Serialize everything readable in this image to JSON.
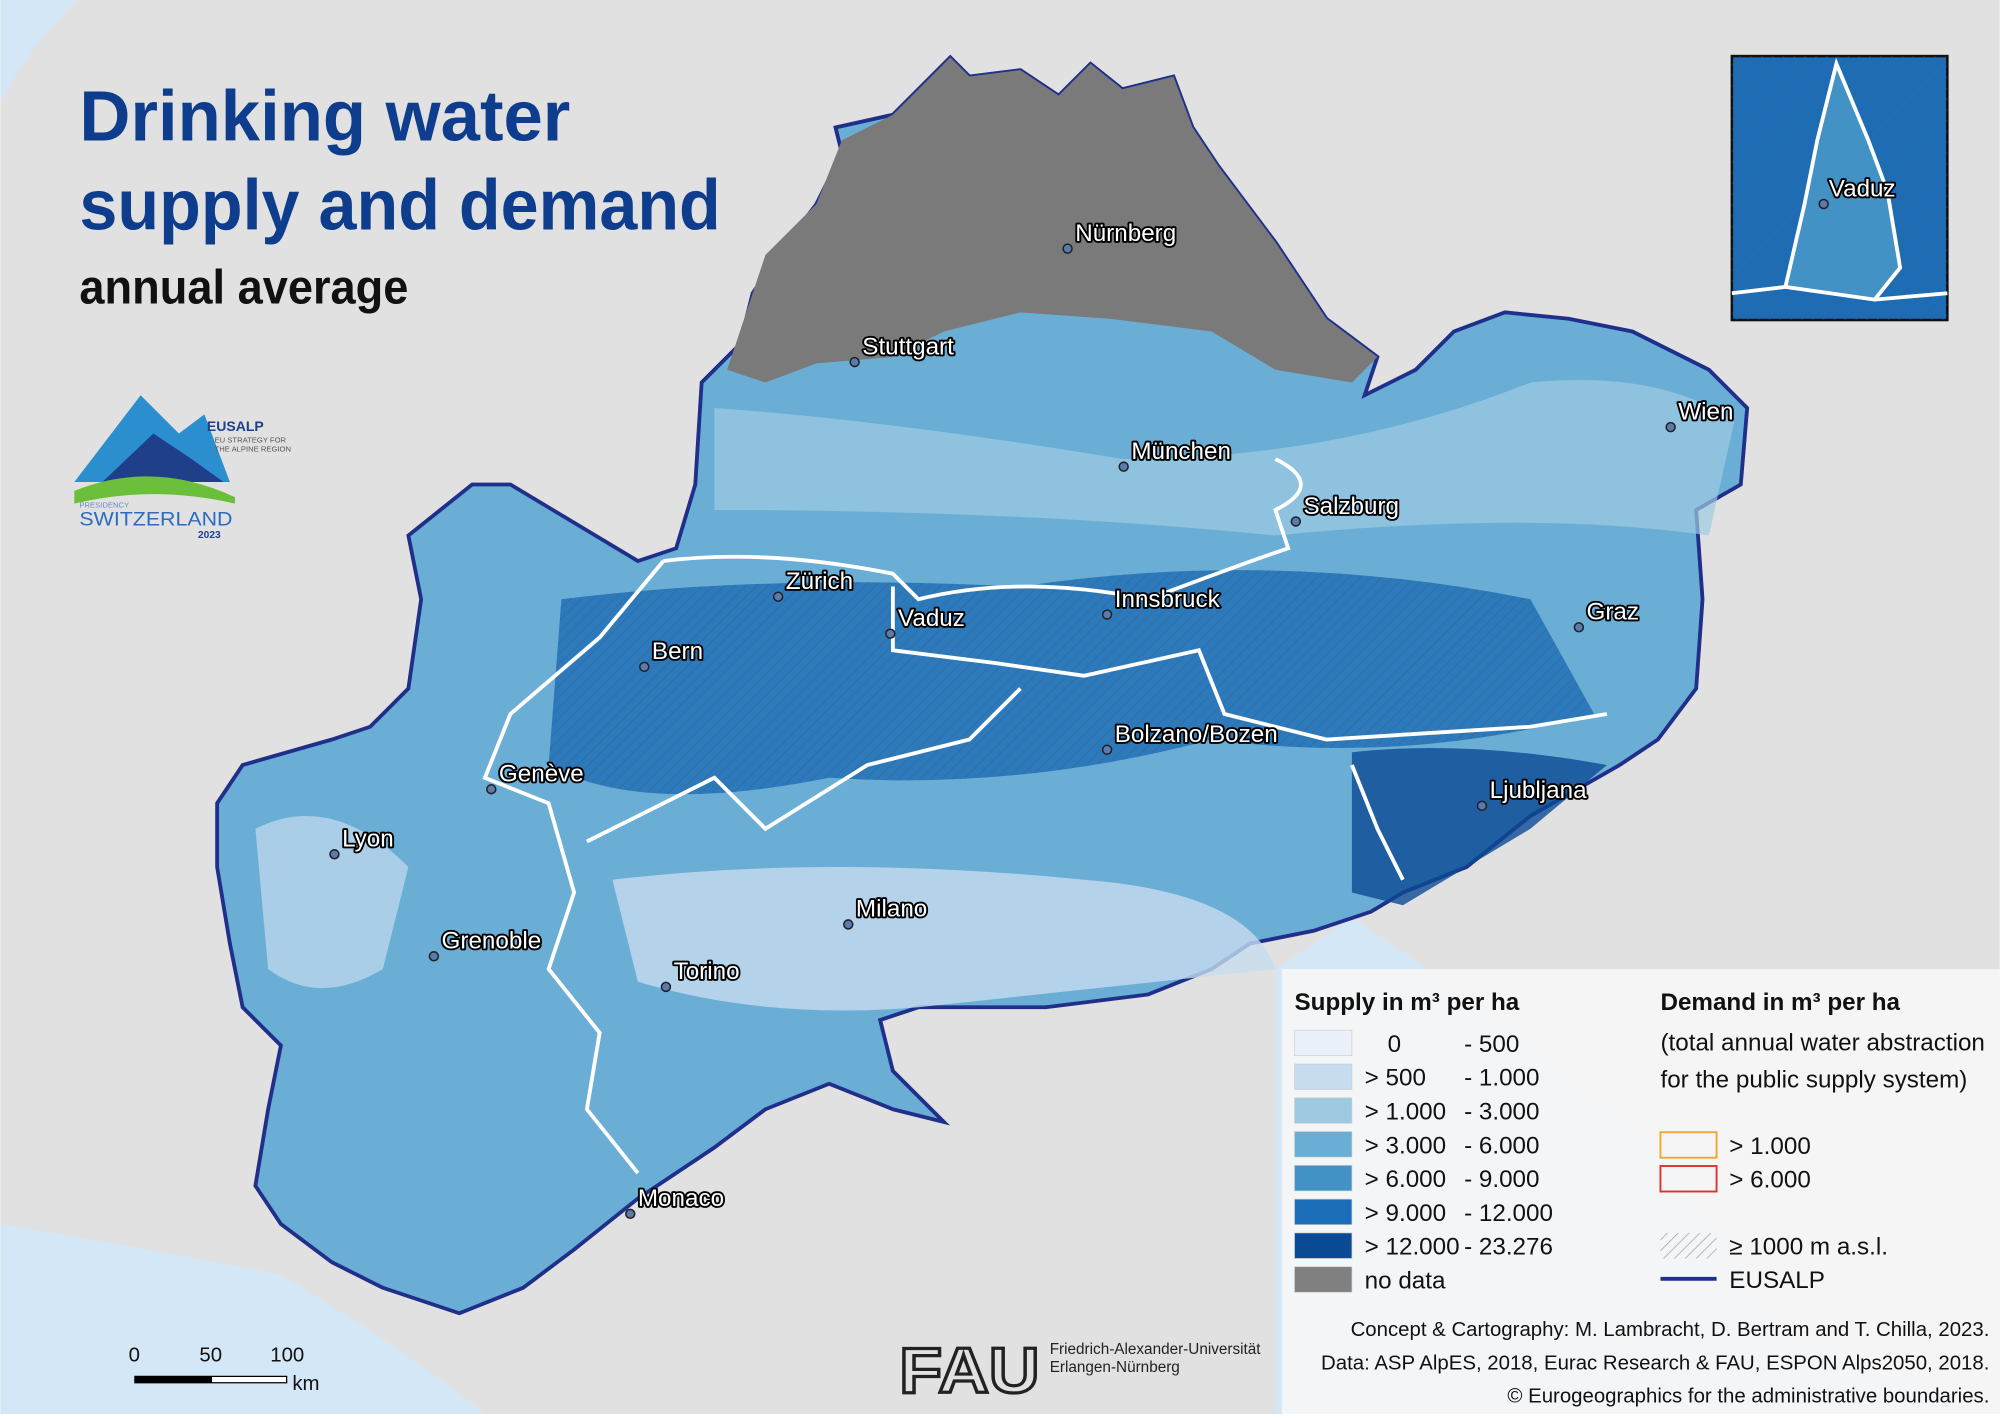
{
  "header": {
    "title_lines": [
      "Drinking water",
      "supply and demand"
    ],
    "subtitle": "annual average"
  },
  "logo": {
    "name": "EUSALP",
    "tagline_lines": [
      "EU STRATEGY FOR",
      "THE ALPINE REGION"
    ],
    "presidency": "PRESIDENCY",
    "country": "SWITZERLAND",
    "year": "2023"
  },
  "cities": [
    "Nürnberg",
    "Stuttgart",
    "München",
    "Wien",
    "Salzburg",
    "Zürich",
    "Vaduz",
    "Innsbruck",
    "Graz",
    "Bern",
    "Bolzano/Bozen",
    "Genève",
    "Ljubljana",
    "Lyon",
    "Milano",
    "Grenoble",
    "Torino",
    "Monaco"
  ],
  "inset": {
    "city": "Vaduz"
  },
  "supply_legend": {
    "title": "Supply in m³ per ha",
    "items": [
      {
        "from": "0",
        "to": "- 500",
        "color": "#eaf1fa"
      },
      {
        "from": "> 500",
        "to": "- 1.000",
        "color": "#c7dcef"
      },
      {
        "from": "> 1.000",
        "to": "- 3.000",
        "color": "#9ecae1"
      },
      {
        "from": "> 3.000",
        "to": "- 6.000",
        "color": "#6aaed6"
      },
      {
        "from": "> 6.000",
        "to": "- 9.000",
        "color": "#4292c6"
      },
      {
        "from": "> 9.000",
        "to": "- 12.000",
        "color": "#1c6db8"
      },
      {
        "from": "> 12.000",
        "to": "- 23.276",
        "color": "#0b4a94"
      },
      {
        "from": "no data",
        "to": null,
        "color": "#808080"
      }
    ]
  },
  "demand_legend": {
    "title": "Demand in m³ per ha",
    "subtitle_lines": [
      "(total annual water abstraction",
      "for the public supply system)"
    ],
    "items": [
      {
        "label": "> 1.000",
        "color": "#f0a830"
      },
      {
        "label": "> 6.000",
        "color": "#e03030"
      }
    ],
    "altitude": "≥ 1000 m a.s.l.",
    "boundary": "EUSALP"
  },
  "credits": [
    "Concept & Cartography: M. Lambracht, D. Bertram and T. Chilla, 2023.",
    "Data: ASP AlpES, 2018, Eurac Research & FAU, ESPON Alps2050, 2018.",
    "© Eurogeographics for the administrative boundaries."
  ],
  "scale_bar": {
    "labels": [
      "0",
      "50",
      "100"
    ],
    "unit": "km"
  },
  "university": {
    "short": "FAU",
    "name_lines": [
      "Friedrich-Alexander-Universität",
      "Erlangen-Nürnberg"
    ]
  }
}
